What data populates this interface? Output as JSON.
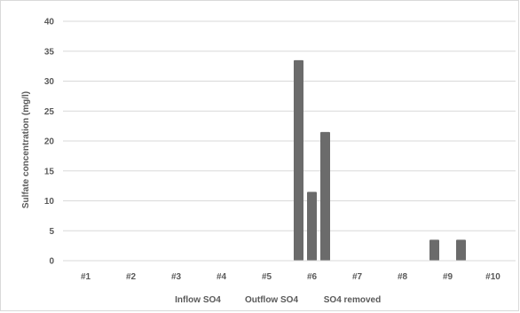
{
  "chart_data": {
    "type": "bar",
    "title": "",
    "xlabel": "",
    "ylabel": "Sulfate concentration (mg/l)",
    "ylim": [
      0,
      40
    ],
    "yticks": [
      0,
      5,
      10,
      15,
      20,
      25,
      30,
      35,
      40
    ],
    "grid": true,
    "legend_position": "bottom",
    "categories": [
      "#1",
      "#2",
      "#3",
      "#4",
      "#5",
      "#6",
      "#7",
      "#8",
      "#9",
      "#10"
    ],
    "series": [
      {
        "name": "Inflow SO4",
        "color": "#6b6b6b",
        "values": [
          0,
          0,
          0,
          0,
          0,
          33.5,
          0,
          0,
          3.5,
          0
        ]
      },
      {
        "name": "Outflow SO4",
        "color": "#6b6b6b",
        "values": [
          0,
          0,
          0,
          0,
          0,
          11.5,
          0,
          0,
          0,
          0
        ]
      },
      {
        "name": "SO4 removed",
        "color": "#6b6b6b",
        "values": [
          0,
          0,
          0,
          0,
          0,
          21.5,
          0,
          0,
          3.5,
          0
        ]
      }
    ]
  }
}
